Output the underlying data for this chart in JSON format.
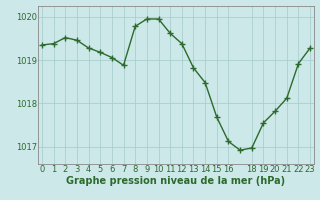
{
  "x": [
    0,
    1,
    2,
    3,
    4,
    5,
    6,
    7,
    8,
    9,
    10,
    11,
    12,
    13,
    14,
    15,
    16,
    17,
    18,
    19,
    20,
    21,
    22,
    23
  ],
  "y": [
    1019.35,
    1019.38,
    1019.52,
    1019.46,
    1019.28,
    1019.18,
    1019.06,
    1018.88,
    1019.78,
    1019.95,
    1019.95,
    1019.62,
    1019.38,
    1018.82,
    1018.48,
    1017.68,
    1017.12,
    1016.92,
    1016.97,
    1017.55,
    1017.82,
    1018.12,
    1018.92,
    1019.28
  ],
  "line_color": "#2d6a2d",
  "marker": "+",
  "markersize": 4,
  "markeredgewidth": 1.0,
  "linewidth": 1.0,
  "bg_color": "#cce8e8",
  "grid_color": "#aacece",
  "xlabel": "Graphe pression niveau de la mer (hPa)",
  "ylim": [
    1016.6,
    1020.25
  ],
  "xlim": [
    -0.3,
    23.3
  ],
  "yticks": [
    1017,
    1018,
    1019,
    1020
  ],
  "xticks": [
    0,
    1,
    2,
    3,
    4,
    5,
    6,
    7,
    8,
    9,
    10,
    11,
    12,
    13,
    14,
    15,
    16,
    18,
    19,
    20,
    21,
    22,
    23
  ],
  "xlabel_fontsize": 7,
  "tick_fontsize": 6,
  "tick_color": "#2d6a2d",
  "axis_color": "#2d6a2d",
  "spine_color": "#888888"
}
